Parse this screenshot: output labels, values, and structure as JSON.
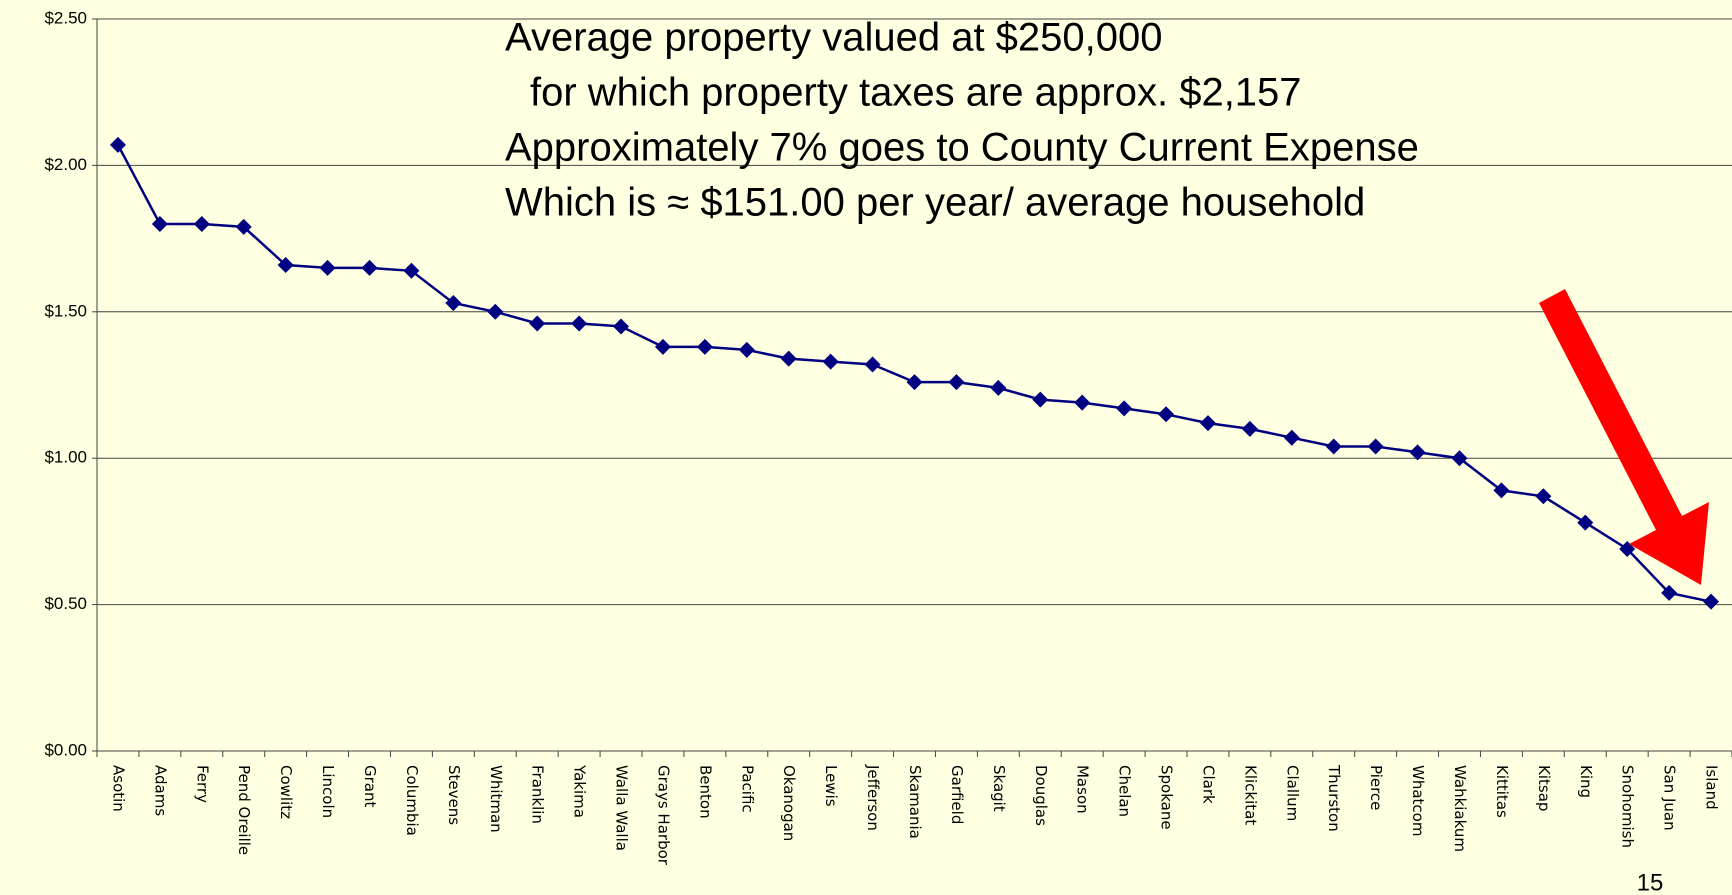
{
  "chart_data": {
    "type": "line",
    "annotation": [
      "Average property valued at  $250,000",
      "for which property taxes are approx. $2,157",
      "Approximately 7% goes to County Current Expense",
      "Which  is ≈ $151.00 per year/ average household"
    ],
    "page_number": "15",
    "categories": [
      "Asotin",
      "Adams",
      "Ferry",
      "Pend Oreille",
      "Cowlitz",
      "Lincoln",
      "Grant",
      "Columbia",
      "Stevens",
      "Whitman",
      "Franklin",
      "Yakima",
      "Walla Walla",
      "Grays Harbor",
      "Benton",
      "Pacific",
      "Okanogan",
      "Lewis",
      "Jefferson",
      "Skamania",
      "Garfield",
      "Skagit",
      "Douglas",
      "Mason",
      "Chelan",
      "Spokane",
      "Clark",
      "Klickitat",
      "Clallum",
      "Thurston",
      "Pierce",
      "Whatcom",
      "Wahkiakum",
      "Kittitas",
      "Kitsap",
      "King",
      "Snohomish",
      "San Juan",
      "Island"
    ],
    "values": [
      2.07,
      1.8,
      1.8,
      1.79,
      1.66,
      1.65,
      1.65,
      1.64,
      1.53,
      1.5,
      1.46,
      1.46,
      1.45,
      1.38,
      1.38,
      1.37,
      1.34,
      1.33,
      1.32,
      1.26,
      1.26,
      1.24,
      1.2,
      1.19,
      1.17,
      1.15,
      1.12,
      1.1,
      1.07,
      1.04,
      1.04,
      1.02,
      1.0,
      0.89,
      0.87,
      0.78,
      0.69,
      0.54,
      0.51
    ],
    "color": "#000080",
    "ylim": [
      0,
      2.5
    ],
    "yticks": [
      {
        "value": 0,
        "label": "$0.00"
      },
      {
        "value": 0.5,
        "label": "$0.50"
      },
      {
        "value": 1,
        "label": "$1.00"
      },
      {
        "value": 1.5,
        "label": "$1.50"
      },
      {
        "value": 2,
        "label": "$2.00"
      },
      {
        "value": 2.5,
        "label": "$2.50"
      }
    ],
    "grid": true
  }
}
